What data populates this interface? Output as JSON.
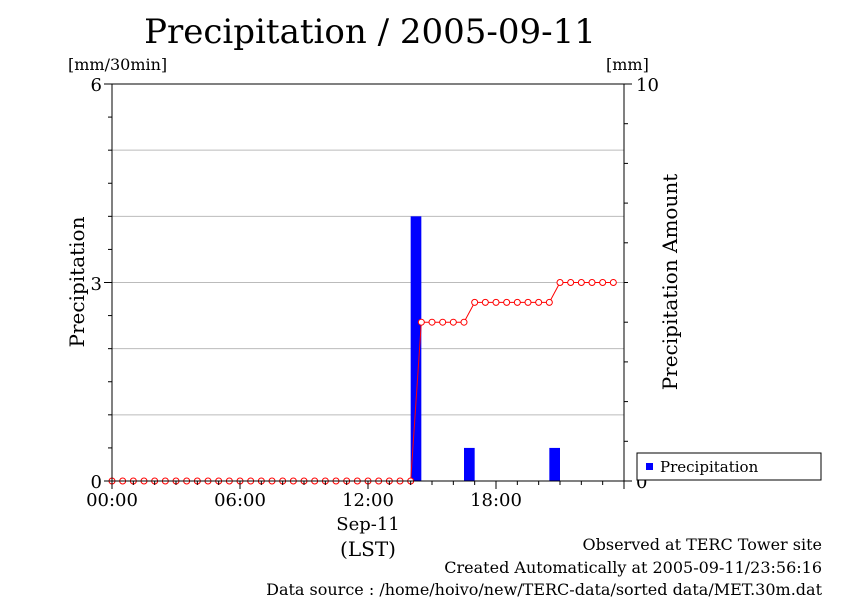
{
  "chart_data": {
    "type": "bar",
    "title": "Precipitation / 2005-09-11",
    "left_axis": {
      "unit": "[mm/30min]",
      "label": "Precipitation",
      "range": [
        0,
        6
      ],
      "ticks": [
        "0",
        "3",
        "6"
      ]
    },
    "right_axis": {
      "unit": "[mm]",
      "label": "Precipitation Amount",
      "range": [
        0,
        10
      ],
      "ticks": [
        "0",
        "10"
      ]
    },
    "x_axis": {
      "tick_labels": [
        "00:00",
        "06:00",
        "12:00",
        "18:00"
      ],
      "date_label": "Sep-11",
      "unit_label": "(LST)"
    },
    "grid": true,
    "legend": {
      "position": "right",
      "entries": [
        "Precipitation"
      ]
    },
    "bar_series": {
      "name": "Precipitation",
      "color": "#0000ff",
      "interval_minutes": 30,
      "points": [
        {
          "time": "14:00",
          "value": 4.0
        },
        {
          "time": "16:30",
          "value": 0.5
        },
        {
          "time": "20:30",
          "value": 0.5
        }
      ]
    },
    "line_series": {
      "color": "#ff0000",
      "times": [
        "00:00",
        "00:30",
        "01:00",
        "01:30",
        "02:00",
        "02:30",
        "03:00",
        "03:30",
        "04:00",
        "04:30",
        "05:00",
        "05:30",
        "06:00",
        "06:30",
        "07:00",
        "07:30",
        "08:00",
        "08:30",
        "09:00",
        "09:30",
        "10:00",
        "10:30",
        "11:00",
        "11:30",
        "12:00",
        "12:30",
        "13:00",
        "13:30",
        "14:00",
        "14:30",
        "15:00",
        "15:30",
        "16:00",
        "16:30",
        "17:00",
        "17:30",
        "18:00",
        "18:30",
        "19:00",
        "19:30",
        "20:00",
        "20:30",
        "21:00",
        "21:30",
        "22:00",
        "22:30",
        "23:00",
        "23:30"
      ],
      "values": [
        0,
        0,
        0,
        0,
        0,
        0,
        0,
        0,
        0,
        0,
        0,
        0,
        0,
        0,
        0,
        0,
        0,
        0,
        0,
        0,
        0,
        0,
        0,
        0,
        0,
        0,
        0,
        0,
        0,
        4,
        4,
        4,
        4,
        4,
        4.5,
        4.5,
        4.5,
        4.5,
        4.5,
        4.5,
        4.5,
        4.5,
        5,
        5,
        5,
        5,
        5,
        5
      ]
    }
  },
  "footer": {
    "line1": "Observed at TERC Tower site",
    "line2": "Created Automatically at 2005-09-11/23:56:16",
    "line3": "Data source : /home/hoivo/new/TERC-data/sorted  data/MET.30m.dat"
  }
}
